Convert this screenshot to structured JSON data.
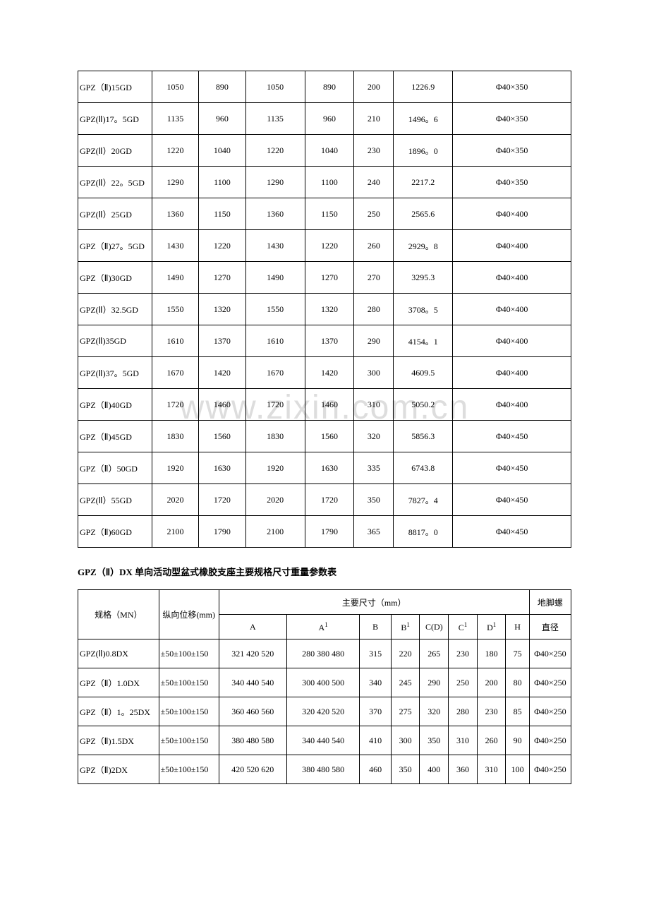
{
  "table1": {
    "col_widths": [
      "15%",
      "9.5%",
      "9.5%",
      "12%",
      "10%",
      "8%",
      "12%",
      "24%"
    ],
    "rows": [
      [
        "GPZ（Ⅱ)15GD",
        "1050",
        "890",
        "1050",
        "890",
        "200",
        "1226.9",
        "Φ40×350"
      ],
      [
        "GPZ(Ⅱ)17。5GD",
        "1135",
        "960",
        "1135",
        "960",
        "210",
        "1496。6",
        "Φ40×350"
      ],
      [
        "GPZ(Ⅱ）20GD",
        "1220",
        "1040",
        "1220",
        "1040",
        "230",
        "1896。0",
        "Φ40×350"
      ],
      [
        "GPZ(Ⅱ）22。5GD",
        "1290",
        "1100",
        "1290",
        "1100",
        "240",
        "2217.2",
        "Φ40×350"
      ],
      [
        "GPZ(Ⅱ）25GD",
        "1360",
        "1150",
        "1360",
        "1150",
        "250",
        "2565.6",
        "Φ40×400"
      ],
      [
        "GPZ（Ⅱ)27。5GD",
        "1430",
        "1220",
        "1430",
        "1220",
        "260",
        "2929。8",
        "Φ40×400"
      ],
      [
        "GPZ（Ⅱ)30GD",
        "1490",
        "1270",
        "1490",
        "1270",
        "270",
        "3295.3",
        "Φ40×400"
      ],
      [
        "GPZ(Ⅱ）32.5GD",
        "1550",
        "1320",
        "1550",
        "1320",
        "280",
        "3708。5",
        "Φ40×400"
      ],
      [
        "GPZ(Ⅱ)35GD",
        "1610",
        "1370",
        "1610",
        "1370",
        "290",
        "4154。1",
        "Φ40×400"
      ],
      [
        "GPZ(Ⅱ)37。5GD",
        "1670",
        "1420",
        "1670",
        "1420",
        "300",
        "4609.5",
        "Φ40×400"
      ],
      [
        "GPZ（Ⅱ)40GD",
        "1720",
        "1460",
        "1720",
        "1460",
        "310",
        "5050.2",
        "Φ40×400"
      ],
      [
        "GPZ（Ⅱ)45GD",
        "1830",
        "1560",
        "1830",
        "1560",
        "320",
        "5856.3",
        "Φ40×450"
      ],
      [
        "GPZ（Ⅱ）50GD",
        "1920",
        "1630",
        "1920",
        "1630",
        "335",
        "6743.8",
        "Φ40×450"
      ],
      [
        "GPZ(Ⅱ）55GD",
        "2020",
        "1720",
        "2020",
        "1720",
        "350",
        "7827。4",
        "Φ40×450"
      ],
      [
        "GPZ（Ⅱ)60GD",
        "2100",
        "1790",
        "2100",
        "1790",
        "365",
        "8817。0",
        "Φ40×450"
      ]
    ]
  },
  "section_title": "GPZ（Ⅱ）DX 单向活动型盆式橡胶支座主要规格尺寸重量参数表",
  "table2": {
    "col_widths": [
      "15.5%",
      "11.5%",
      "13%",
      "14%",
      "6%",
      "5.5%",
      "5.5%",
      "5.5%",
      "5.5%",
      "4.5%",
      "8%"
    ],
    "header": {
      "c0": "规格（MN）",
      "c1": "纵向位移(mm)",
      "main": "主要尺寸（mm）",
      "c2": "A",
      "c3_html": "A<sup>1</sup>",
      "c4": "B",
      "c5_html": "B<sup>1</sup>",
      "c6": "C(D)",
      "c7_html": "C<sup>1</sup>",
      "c8_html": "D<sup>1</sup>",
      "c9": "H",
      "right": "地脚螺",
      "c10": "直径"
    },
    "rows": [
      [
        "GPZ(Ⅱ)0.8DX",
        "±50±100±150",
        "321 420 520",
        "280 380 480",
        "315",
        "220",
        "265",
        "230",
        "180",
        "75",
        "Φ40×250"
      ],
      [
        "GPZ（Ⅱ）1.0DX",
        "±50±100±150",
        "340 440 540",
        "300 400 500",
        "340",
        "245",
        "290",
        "250",
        "200",
        "80",
        "Φ40×250"
      ],
      [
        "GPZ（Ⅱ）1。25DX",
        "±50±100±150",
        "360 460 560",
        "320 420 520",
        "370",
        "275",
        "320",
        "280",
        "230",
        "85",
        "Φ40×250"
      ],
      [
        "GPZ（Ⅱ)1.5DX",
        "±50±100±150",
        "380 480 580",
        "340 440 540",
        "410",
        "300",
        "350",
        "310",
        "260",
        "90",
        "Φ40×250"
      ],
      [
        "GPZ（Ⅱ)2DX",
        "±50±100±150",
        "420 520 620",
        "380 480 580",
        "460",
        "350",
        "400",
        "360",
        "310",
        "100",
        "Φ40×250"
      ]
    ]
  }
}
